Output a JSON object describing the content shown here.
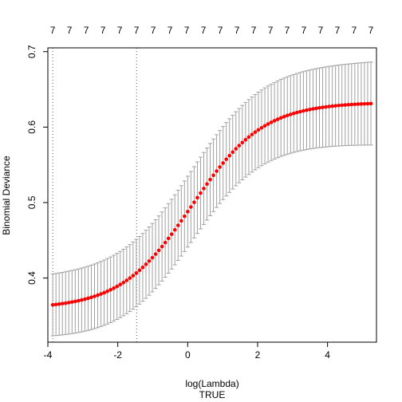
{
  "chart_data": {
    "type": "scatter",
    "xlabel": "log(Lambda)",
    "xlabel_sub": "TRUE",
    "ylabel": "Binomial Deviance",
    "xlim": [
      -4.0,
      5.4
    ],
    "ylim": [
      0.315,
      0.705
    ],
    "x_ticks": [
      "-4",
      "-2",
      "0",
      "2",
      "4"
    ],
    "y_ticks": [
      "0.4",
      "0.5",
      "0.6",
      "0.7"
    ],
    "top_axis_labels": [
      "7",
      "7",
      "7",
      "7",
      "7",
      "7",
      "7",
      "7",
      "7",
      "7",
      "7",
      "7",
      "7",
      "7",
      "7",
      "7",
      "7",
      "7",
      "7",
      "7"
    ],
    "vlines": [
      -3.86,
      -1.46
    ],
    "point_color": "#ff0000",
    "errorbar_color": "#a0a0a0",
    "n_points": 100,
    "x_range": [
      -3.86,
      5.24
    ],
    "mean_curve": {
      "lower": 0.359,
      "upper": 0.633,
      "center": 0.12,
      "scale": 1.02
    },
    "error_halfwidth": {
      "left": 0.041,
      "right": 0.055
    }
  }
}
